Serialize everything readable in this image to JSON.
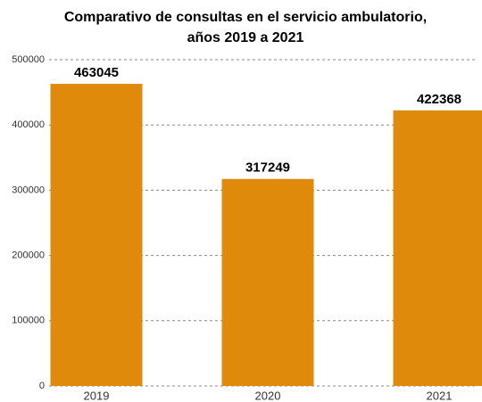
{
  "chart_data": {
    "type": "bar",
    "title": [
      "Comparativo de consultas en el servicio ambulatorio,",
      "años 2019 a 2021"
    ],
    "categories": [
      "2019",
      "2020",
      "2021"
    ],
    "values": [
      463045,
      317249,
      422368
    ],
    "color": "#e08a0c",
    "ylim": [
      0,
      500000
    ],
    "yticks": [
      0,
      100000,
      200000,
      300000,
      400000,
      500000
    ],
    "grid": true
  }
}
